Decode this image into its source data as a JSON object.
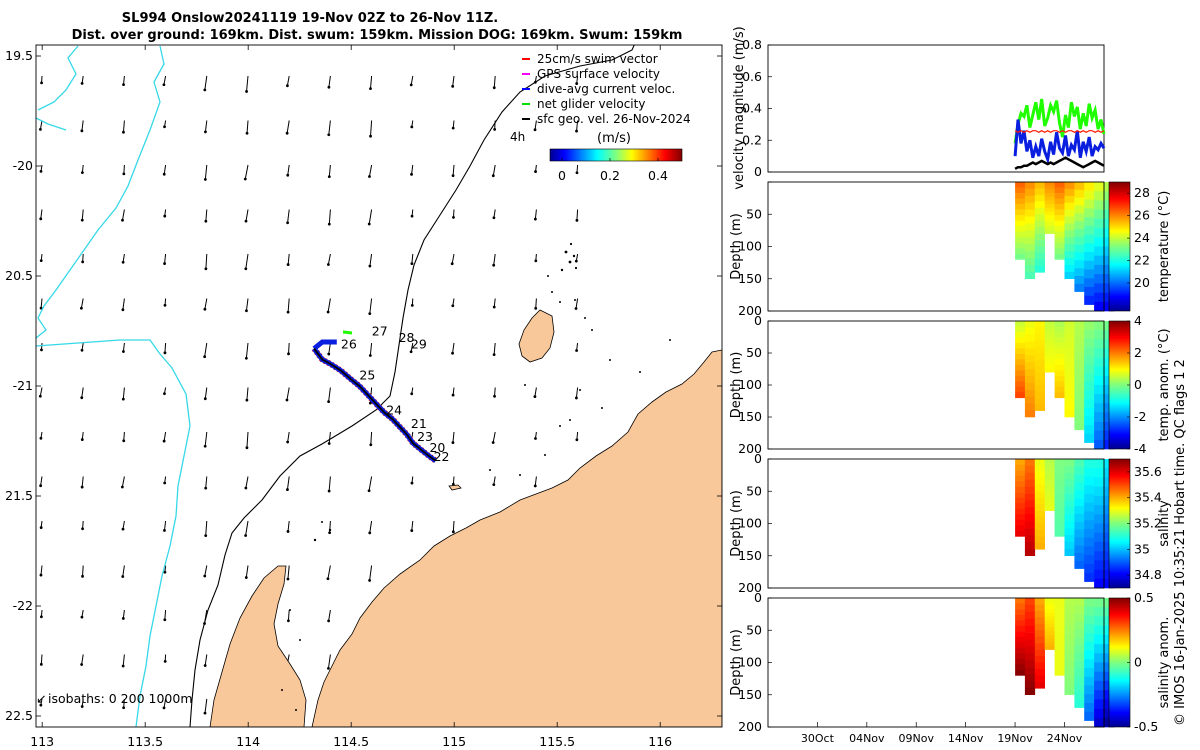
{
  "header": {
    "title_line1": "SL994 Onslow20241119 19-Nov 02Z to 26-Nov 11Z.",
    "title_line2": "Dist. over ground: 169km. Dist. swum: 159km. Mission DOG: 169km. Swum: 159km"
  },
  "colors": {
    "land": "#f9c89a",
    "coast": "#000000",
    "isobath_200": "#000000",
    "isobath_1000": "#36d8e8",
    "track_red": "#ff1a00",
    "track_blue": "#0a1ee0",
    "track_black": "#000000",
    "green": "#20ff00",
    "arrow": "#000000"
  },
  "map": {
    "legend": {
      "items": [
        {
          "label": "25cm/s swim vector",
          "color": "#ff0000"
        },
        {
          "label": "GPS surface velocity",
          "color": "#ff00ff"
        },
        {
          "label": "dive-avg current veloc.",
          "color": "#0000ff"
        },
        {
          "label": "net glider velocity",
          "color": "#00e000"
        },
        {
          "label": "sfc geo. vel. 26-Nov-2024",
          "color": "#000000"
        }
      ],
      "age_label": "4h"
    },
    "colorbar": {
      "title": "(m/s)",
      "range": [
        -0.05,
        0.5
      ],
      "ticks": [
        {
          "v": 0,
          "label": "0"
        },
        {
          "v": 0.2,
          "label": "0.2"
        },
        {
          "v": 0.4,
          "label": "0.4"
        }
      ]
    },
    "isobath_caption": "isobaths: 0   200  1000m",
    "bottom_left_arrow_label": "↙",
    "lon_range": [
      112.97,
      116.3
    ],
    "lat_range": [
      -22.55,
      -19.45
    ],
    "lon_ticks": [
      {
        "v": 113,
        "label": "113"
      },
      {
        "v": 113.5,
        "label": "113.5"
      },
      {
        "v": 114,
        "label": "114"
      },
      {
        "v": 114.5,
        "label": "114.5"
      },
      {
        "v": 115,
        "label": "115"
      },
      {
        "v": 115.5,
        "label": "115.5"
      },
      {
        "v": 116,
        "label": "116"
      }
    ],
    "lat_ticks": [
      {
        "v": -19.5,
        "label": "19.5"
      },
      {
        "v": -20,
        "label": "-20"
      },
      {
        "v": -20.5,
        "label": "20.5"
      },
      {
        "v": -21,
        "label": "-21"
      },
      {
        "v": -21.5,
        "label": "21.5"
      },
      {
        "v": -22,
        "label": "-22"
      },
      {
        "v": -22.5,
        "label": "22.5"
      }
    ],
    "day_labels": [
      {
        "label": "26",
        "lon": 114.45,
        "lat": -20.83
      },
      {
        "label": "27",
        "lon": 114.6,
        "lat": -20.77
      },
      {
        "label": "28",
        "lon": 114.73,
        "lat": -20.8
      },
      {
        "label": "29",
        "lon": 114.79,
        "lat": -20.83
      },
      {
        "label": "25",
        "lon": 114.54,
        "lat": -20.97
      },
      {
        "label": "24",
        "lon": 114.67,
        "lat": -21.13
      },
      {
        "label": "21",
        "lon": 114.79,
        "lat": -21.19
      },
      {
        "label": "23",
        "lon": 114.82,
        "lat": -21.25
      },
      {
        "label": "20",
        "lon": 114.88,
        "lat": -21.3
      },
      {
        "label": "22",
        "lon": 114.9,
        "lat": -21.34
      }
    ],
    "track": [
      [
        114.32,
        -20.83
      ],
      [
        114.36,
        -20.88
      ],
      [
        114.4,
        -20.9
      ],
      [
        114.45,
        -20.93
      ],
      [
        114.5,
        -20.97
      ],
      [
        114.54,
        -21.0
      ],
      [
        114.58,
        -21.04
      ],
      [
        114.62,
        -21.08
      ],
      [
        114.66,
        -21.12
      ],
      [
        114.7,
        -21.15
      ],
      [
        114.74,
        -21.19
      ],
      [
        114.77,
        -21.22
      ],
      [
        114.8,
        -21.26
      ],
      [
        114.84,
        -21.29
      ],
      [
        114.88,
        -21.32
      ],
      [
        114.91,
        -21.34
      ]
    ],
    "track_blue_end": [
      [
        114.32,
        -20.83
      ],
      [
        114.36,
        -20.8
      ],
      [
        114.43,
        -20.8
      ]
    ]
  },
  "panels": {
    "velocity": {
      "ylabel": "velocity magnitude (m/s)",
      "ylim": [
        0,
        0.8
      ],
      "yticks": [
        {
          "v": 0,
          "label": "0"
        },
        {
          "v": 0.2,
          "label": "0.2"
        },
        {
          "v": 0.4,
          "label": "0.4"
        },
        {
          "v": 0.6,
          "label": "0.6"
        },
        {
          "v": 0.8,
          "label": "0.8"
        }
      ]
    },
    "temperature": {
      "ylabel": "Depth (m)",
      "cblabel": "temperature (°C)",
      "cb_range": [
        17.5,
        29
      ],
      "cb_ticks": [
        {
          "v": 28,
          "label": "28"
        },
        {
          "v": 26,
          "label": "26"
        },
        {
          "v": 24,
          "label": "24"
        },
        {
          "v": 22,
          "label": "22"
        },
        {
          "v": 20,
          "label": "20"
        }
      ]
    },
    "temp_anom": {
      "ylabel": "Depth (m)",
      "cblabel": "temp. anom. (°C)",
      "cb_range": [
        -4,
        4
      ],
      "cb_ticks": [
        {
          "v": 4,
          "label": "4"
        },
        {
          "v": 2,
          "label": "2"
        },
        {
          "v": 0,
          "label": "0"
        },
        {
          "v": -2,
          "label": "-2"
        },
        {
          "v": -4,
          "label": "-4"
        }
      ]
    },
    "salinity": {
      "ylabel": "Depth (m)",
      "cblabel": "salinity",
      "cb_range": [
        34.7,
        35.7
      ],
      "cb_ticks": [
        {
          "v": 35.6,
          "label": "35.6"
        },
        {
          "v": 35.4,
          "label": "35.4"
        },
        {
          "v": 35.2,
          "label": "35.2"
        },
        {
          "v": 35,
          "label": "35"
        },
        {
          "v": 34.8,
          "label": "34.8"
        }
      ]
    },
    "sal_anom": {
      "ylabel": "Depth (m)",
      "cblabel": "salinity anom.",
      "cb_range": [
        -0.5,
        0.5
      ],
      "cb_ticks": [
        {
          "v": 0.5,
          "label": "0.5"
        },
        {
          "v": 0,
          "label": "0"
        },
        {
          "v": -0.5,
          "label": "-0.5"
        }
      ]
    },
    "depth_ticks": [
      {
        "v": 0,
        "label": "0"
      },
      {
        "v": 50,
        "label": "50"
      },
      {
        "v": 100,
        "label": "100"
      },
      {
        "v": 150,
        "label": "150"
      },
      {
        "v": 200,
        "label": "200"
      }
    ],
    "depth_ticks_no_top": [
      {
        "v": 50,
        "label": "50"
      },
      {
        "v": 100,
        "label": "100"
      },
      {
        "v": 150,
        "label": "150"
      },
      {
        "v": 200,
        "label": "200"
      }
    ],
    "time_range_days": [
      0,
      34
    ],
    "time_ticks": [
      {
        "v": 5,
        "label": "30Oct"
      },
      {
        "v": 10,
        "label": "04Nov"
      },
      {
        "v": 15,
        "label": "09Nov"
      },
      {
        "v": 20,
        "label": "14Nov"
      },
      {
        "v": 25,
        "label": "19Nov"
      },
      {
        "v": 30,
        "label": "24Nov"
      }
    ]
  },
  "chart_data": [
    {
      "type": "line",
      "title": "velocity magnitude (m/s)",
      "xlabel": "",
      "ylabel": "velocity magnitude (m/s)",
      "x_units": "days since 25-Oct-2024",
      "ylim": [
        0,
        0.8
      ],
      "x": [
        25.0,
        25.3,
        25.6,
        25.9,
        26.2,
        26.5,
        26.8,
        27.1,
        27.4,
        27.7,
        28.0,
        28.3,
        28.6,
        28.9,
        29.2,
        29.5,
        29.8,
        30.1,
        30.4,
        30.7,
        31.0,
        31.3,
        31.6,
        31.9,
        32.2,
        32.5,
        32.8,
        33.1,
        33.4,
        33.7,
        34.0
      ],
      "series": [
        {
          "name": "net glider velocity",
          "color": "#20ff00",
          "values": [
            0.18,
            0.3,
            0.37,
            0.35,
            0.42,
            0.28,
            0.36,
            0.44,
            0.33,
            0.46,
            0.29,
            0.34,
            0.42,
            0.38,
            0.45,
            0.31,
            0.22,
            0.36,
            0.28,
            0.44,
            0.35,
            0.41,
            0.27,
            0.37,
            0.29,
            0.43,
            0.34,
            0.39,
            0.27,
            0.33,
            0.24
          ]
        },
        {
          "name": "dive-avg current veloc.",
          "color": "#0a1ee0",
          "values": [
            0.1,
            0.33,
            0.18,
            0.26,
            0.13,
            0.2,
            0.09,
            0.16,
            0.1,
            0.21,
            0.13,
            0.08,
            0.19,
            0.11,
            0.25,
            0.15,
            0.12,
            0.23,
            0.1,
            0.17,
            0.14,
            0.26,
            0.09,
            0.19,
            0.13,
            0.22,
            0.1,
            0.16,
            0.14,
            0.18,
            0.15
          ]
        },
        {
          "name": "swim vector",
          "color": "#ff1a00",
          "values": [
            0.26,
            0.25,
            0.26,
            0.25,
            0.26,
            0.25,
            0.26,
            0.26,
            0.25,
            0.26,
            0.25,
            0.26,
            0.25,
            0.26,
            0.26,
            0.25,
            0.26,
            0.25,
            0.26,
            0.26,
            0.25,
            0.26,
            0.25,
            0.26,
            0.25,
            0.26,
            0.26,
            0.25,
            0.26,
            0.25,
            0.26
          ]
        },
        {
          "name": "sfc geo. vel.",
          "color": "#000000",
          "values": [
            0.02,
            0.03,
            0.03,
            0.04,
            0.04,
            0.05,
            0.06,
            0.05,
            0.06,
            0.07,
            0.06,
            0.05,
            0.06,
            0.05,
            0.06,
            0.07,
            0.08,
            0.09,
            0.08,
            0.07,
            0.06,
            0.05,
            0.04,
            0.03,
            0.04,
            0.05,
            0.06,
            0.07,
            0.06,
            0.05,
            0.04
          ]
        }
      ]
    },
    {
      "type": "heatmap",
      "title": "temperature (°C)",
      "ylabel": "Depth (m)",
      "cb_range": [
        17.5,
        29
      ],
      "x": [
        25,
        26,
        27,
        28,
        29,
        30,
        31,
        32,
        33,
        34
      ],
      "max_depth": [
        120,
        150,
        140,
        80,
        120,
        150,
        170,
        190,
        200,
        200
      ],
      "surface": [
        26.5,
        26,
        25.5,
        26,
        26.5,
        26,
        25.5,
        25,
        24.5,
        24
      ],
      "bottom": [
        23,
        22.5,
        22,
        24,
        23,
        21,
        20,
        19,
        18.5,
        18.5
      ]
    },
    {
      "type": "heatmap",
      "title": "temp. anom. (°C)",
      "ylabel": "Depth (m)",
      "cb_range": [
        -4,
        4
      ],
      "x": [
        25,
        26,
        27,
        28,
        29,
        30,
        31,
        32,
        33,
        34
      ],
      "max_depth": [
        120,
        150,
        140,
        80,
        120,
        150,
        170,
        190,
        200,
        200
      ],
      "surface": [
        0.5,
        0.8,
        1,
        0.5,
        0.3,
        0.6,
        0.4,
        0.2,
        0.1,
        0
      ],
      "bottom": [
        2.5,
        2,
        1.5,
        1,
        1.5,
        1,
        0,
        -1.5,
        -2.5,
        -3
      ]
    },
    {
      "type": "heatmap",
      "title": "salinity",
      "ylabel": "Depth (m)",
      "cb_range": [
        34.7,
        35.7
      ],
      "x": [
        25,
        26,
        27,
        28,
        29,
        30,
        31,
        32,
        33,
        34
      ],
      "max_depth": [
        120,
        150,
        140,
        80,
        120,
        150,
        170,
        190,
        200,
        200
      ],
      "surface": [
        35.4,
        35.45,
        35.3,
        35.25,
        35.2,
        35.2,
        35.15,
        35.1,
        35.1,
        35.05
      ],
      "bottom": [
        35.6,
        35.65,
        35.4,
        35.3,
        35.15,
        35.0,
        34.9,
        34.85,
        34.8,
        34.8
      ]
    },
    {
      "type": "heatmap",
      "title": "salinity anom.",
      "ylabel": "Depth (m)",
      "cb_range": [
        -0.5,
        0.5
      ],
      "x": [
        25,
        26,
        27,
        28,
        29,
        30,
        31,
        32,
        33,
        34
      ],
      "max_depth": [
        120,
        150,
        140,
        80,
        120,
        150,
        170,
        190,
        200,
        200
      ],
      "surface": [
        0.25,
        0.3,
        0.2,
        0.1,
        0.1,
        0.05,
        0.05,
        0,
        0,
        0
      ],
      "bottom": [
        0.5,
        0.5,
        0.4,
        0.2,
        0.1,
        0,
        -0.1,
        -0.3,
        -0.45,
        -0.5
      ]
    }
  ],
  "footer": {
    "credit": "© IMOS 16-Jan-2025 10:35:21 Hobart time. QC flags 1  2"
  }
}
